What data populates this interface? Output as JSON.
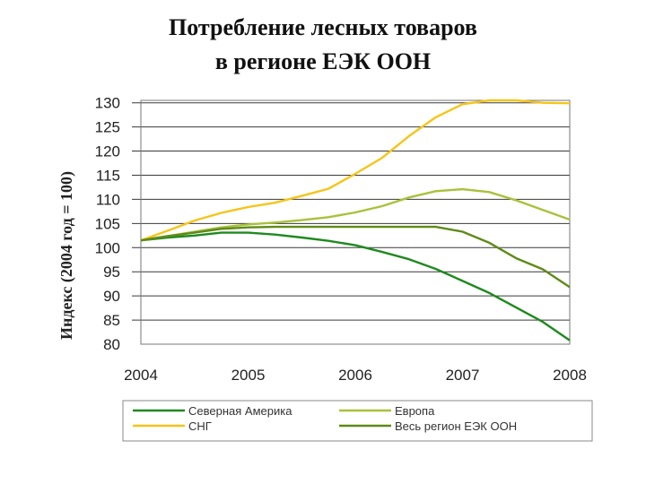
{
  "title": {
    "line1": "Потребление лесных товаров",
    "line2": "в регионе ЕЭК ООН"
  },
  "chart_data": {
    "type": "line",
    "ylabel": "Индекс (2004 год = 100)",
    "xlabel": "",
    "ylim": [
      80,
      130
    ],
    "xlim": [
      2004,
      2008
    ],
    "yticks": [
      130,
      125,
      120,
      115,
      110,
      105,
      100,
      95,
      90,
      85,
      80
    ],
    "xticks": [
      "2004",
      "2005",
      "2006",
      "2007",
      "2008"
    ],
    "grid": "horizontal",
    "legend_position": "bottom",
    "series": [
      {
        "name": "Северная Америка",
        "color": "#1e8a1e",
        "x": [
          2004,
          2004.25,
          2004.5,
          2004.75,
          2005,
          2005.25,
          2005.5,
          2005.75,
          2006,
          2006.25,
          2006.5,
          2006.75,
          2007,
          2007.25,
          2007.5,
          2007.75,
          2008
        ],
        "values": [
          101.5,
          102.1,
          102.5,
          103.1,
          103.1,
          102.7,
          102.1,
          101.4,
          100.5,
          99.1,
          97.6,
          95.6,
          93.1,
          90.6,
          87.6,
          84.6,
          80.8
        ]
      },
      {
        "name": "Европа",
        "color": "#a8c23a",
        "x": [
          2004,
          2004.25,
          2004.5,
          2004.75,
          2005,
          2005.25,
          2005.5,
          2005.75,
          2006,
          2006.25,
          2006.5,
          2006.75,
          2007,
          2007.25,
          2007.5,
          2007.75,
          2008
        ],
        "values": [
          101.5,
          102.4,
          103.3,
          104.2,
          104.8,
          105.2,
          105.7,
          106.3,
          107.3,
          108.6,
          110.4,
          111.7,
          112.1,
          111.5,
          109.8,
          107.8,
          105.8
        ]
      },
      {
        "name": "СНГ",
        "color": "#f5c518",
        "x": [
          2004,
          2004.25,
          2004.5,
          2004.75,
          2005,
          2005.25,
          2005.5,
          2005.75,
          2006,
          2006.25,
          2006.5,
          2006.75,
          2007,
          2007.25,
          2007.5,
          2007.75,
          2008
        ],
        "values": [
          101.5,
          103.5,
          105.6,
          107.2,
          108.4,
          109.3,
          110.7,
          112.2,
          115.3,
          118.6,
          123.1,
          127.0,
          129.7,
          130.5,
          130.5,
          130.0,
          129.9
        ]
      },
      {
        "name": "Весь регион ЕЭК ООН",
        "color": "#5f8a18",
        "x": [
          2004,
          2004.25,
          2004.5,
          2004.75,
          2005,
          2005.25,
          2005.5,
          2005.75,
          2006,
          2006.25,
          2006.5,
          2006.75,
          2007,
          2007.25,
          2007.5,
          2007.75,
          2008
        ],
        "values": [
          101.5,
          102.4,
          103.1,
          103.9,
          104.2,
          104.3,
          104.3,
          104.3,
          104.3,
          104.3,
          104.3,
          104.3,
          103.3,
          101.0,
          97.8,
          95.5,
          91.8
        ]
      }
    ]
  }
}
